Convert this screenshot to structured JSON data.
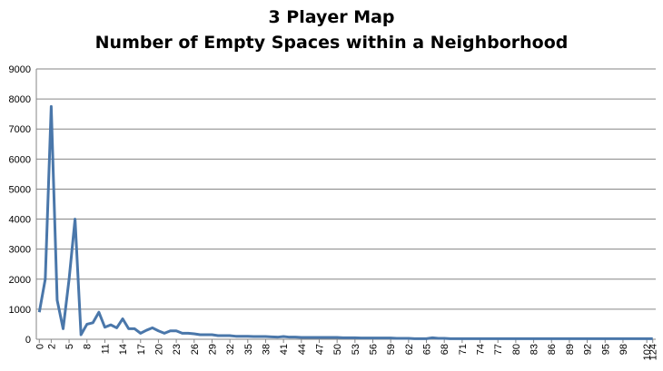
{
  "chart_data": {
    "type": "line",
    "title": [
      "3 Player Map",
      "Number of Empty Spaces within a Neighborhood"
    ],
    "xlabel": "",
    "ylabel": "",
    "ylim": [
      0,
      9000
    ],
    "yticks": [
      0,
      1000,
      2000,
      3000,
      4000,
      5000,
      6000,
      7000,
      8000,
      9000
    ],
    "grid": true,
    "legend": "none",
    "x_tick_labels": [
      "0",
      "2",
      "5",
      "8",
      "11",
      "14",
      "17",
      "20",
      "23",
      "26",
      "29",
      "32",
      "35",
      "38",
      "41",
      "44",
      "47",
      "50",
      "53",
      "56",
      "59",
      "62",
      "65",
      "68",
      "71",
      "74",
      "77",
      "80",
      "83",
      "86",
      "89",
      "92",
      "95",
      "98",
      "102",
      "124"
    ],
    "color": "#4a77aa",
    "series": [
      {
        "x": [
          0,
          1,
          2,
          3,
          4,
          5,
          6,
          7,
          8,
          9,
          10,
          11,
          12,
          13,
          14,
          15,
          16,
          17,
          18,
          19,
          20,
          21,
          22,
          23,
          24,
          25,
          26,
          27,
          28,
          29,
          30,
          31,
          32,
          33,
          34,
          35,
          36,
          37,
          38,
          39,
          40,
          41,
          42,
          43,
          44,
          45,
          46,
          47,
          48,
          49,
          50,
          51,
          52,
          53,
          54,
          55,
          56,
          57,
          58,
          59,
          60,
          61,
          62,
          63,
          64,
          65,
          66,
          67,
          68,
          69,
          70,
          71,
          72,
          73,
          74,
          75,
          76,
          77,
          78,
          79,
          80,
          81,
          82,
          83,
          84,
          85,
          86,
          87,
          88,
          89,
          90,
          91,
          92,
          93,
          94,
          95,
          96,
          97,
          98,
          99,
          100,
          101,
          102,
          124
        ],
        "values": [
          900,
          2000,
          7750,
          1300,
          350,
          2000,
          4000,
          150,
          500,
          550,
          900,
          400,
          480,
          380,
          680,
          350,
          350,
          200,
          300,
          380,
          280,
          200,
          280,
          280,
          200,
          200,
          180,
          150,
          150,
          150,
          120,
          120,
          120,
          100,
          100,
          100,
          90,
          90,
          90,
          80,
          70,
          90,
          70,
          70,
          60,
          60,
          60,
          60,
          60,
          60,
          60,
          50,
          50,
          50,
          40,
          40,
          40,
          40,
          40,
          40,
          30,
          30,
          30,
          20,
          20,
          20,
          50,
          30,
          30,
          20,
          20,
          20,
          20,
          20,
          20,
          20,
          20,
          20,
          20,
          20,
          20,
          20,
          20,
          20,
          20,
          20,
          20,
          20,
          20,
          20,
          20,
          20,
          20,
          20,
          20,
          20,
          20,
          20,
          20,
          20,
          20,
          20,
          20,
          20
        ]
      }
    ]
  }
}
